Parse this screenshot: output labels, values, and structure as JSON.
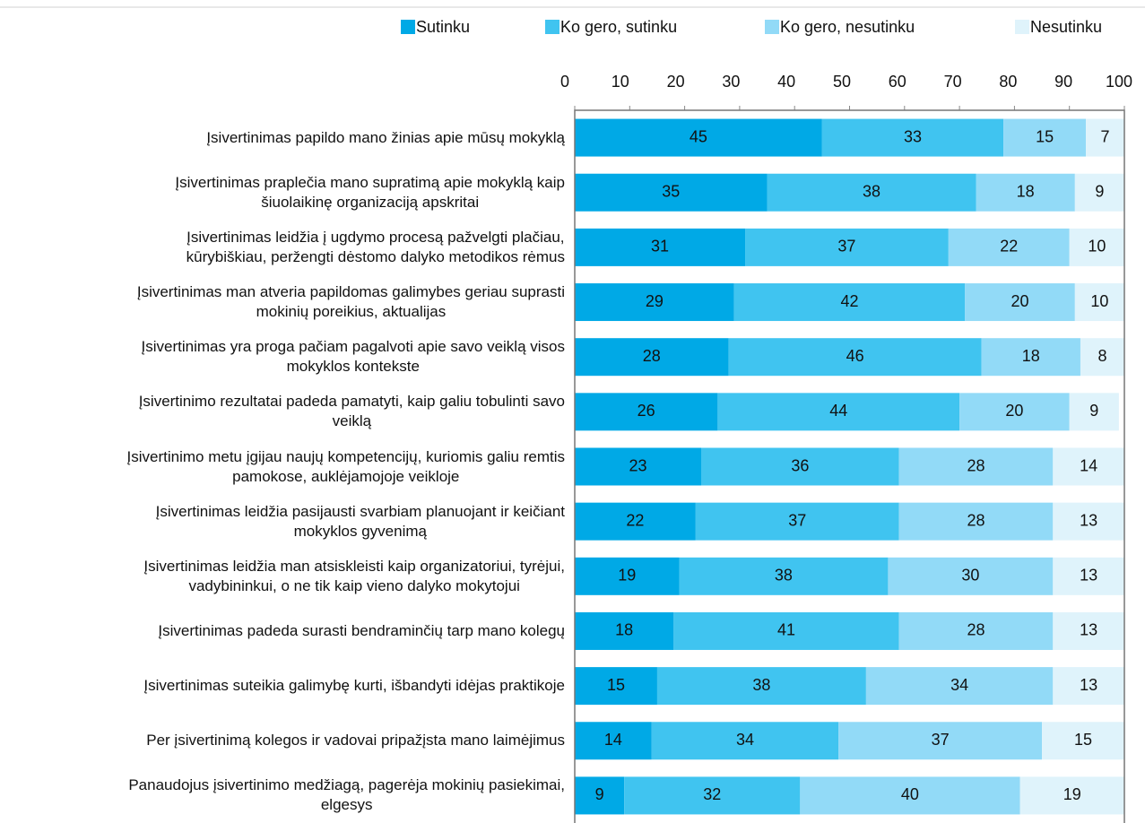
{
  "chart_data": {
    "type": "stacked_bar_horizontal",
    "categories": [
      "Įsivertinimas papildo mano žinias apie mūsų mokyklą",
      "Įsivertinimas praplečia mano supratimą apie mokyklą kaip\nšiuolaikinę organizaciją apskritai",
      "Įsivertinimas leidžia į ugdymo procesą pažvelgti plačiau,\nkūrybiškiau, peržengti dėstomo dalyko metodikos rėmus",
      "Įsivertinimas man atveria papildomas galimybes geriau suprasti\nmokinių poreikius, aktualijas",
      "Įsivertinimas yra proga pačiam pagalvoti apie savo veiklą visos\nmokyklos kontekste",
      "Įsivertinimo rezultatai padeda pamatyti, kaip galiu tobulinti savo\nveiklą",
      "Įsivertinimo metu įgijau naujų kompetencijų, kuriomis galiu remtis\npamokose, auklėjamojoje veikloje",
      "Įsivertinimas leidžia pasijausti svarbiam planuojant ir keičiant\nmokyklos gyvenimą",
      "Įsivertinimas leidžia man atsiskleisti kaip organizatoriui, tyrėjui,\nvadybininkui, o ne tik kaip vieno dalyko mokytojui",
      "Įsivertinimas padeda surasti bendraminčių tarp mano kolegų",
      "Įsivertinimas suteikia galimybę kurti, išbandyti idėjas praktikoje",
      "Per įsivertinimą kolegos ir vadovai pripažįsta mano laimėjimus",
      "Panaudojus įsivertinimo medžiagą, pagerėja mokinių pasiekimai,\nelgesys"
    ],
    "series": [
      {
        "name": "Sutinku",
        "color": "#00a9e6",
        "values": [
          45,
          35,
          31,
          29,
          28,
          26,
          23,
          22,
          19,
          18,
          15,
          14,
          9
        ]
      },
      {
        "name": "Ko gero, sutinku",
        "color": "#40c4f0",
        "values": [
          33,
          38,
          37,
          42,
          46,
          44,
          36,
          37,
          38,
          41,
          38,
          34,
          32
        ]
      },
      {
        "name": "Ko gero, nesutinku",
        "color": "#92daf7",
        "values": [
          15,
          18,
          22,
          20,
          18,
          20,
          28,
          28,
          30,
          28,
          34,
          37,
          40
        ]
      },
      {
        "name": "Nesutinku",
        "color": "#dff3fb",
        "values": [
          7,
          9,
          10,
          10,
          8,
          9,
          14,
          13,
          13,
          13,
          13,
          15,
          19
        ]
      }
    ],
    "xlim": [
      0,
      100
    ],
    "xticks": [
      0,
      10,
      20,
      30,
      40,
      50,
      60,
      70,
      80,
      90,
      100
    ],
    "legend": "top"
  }
}
